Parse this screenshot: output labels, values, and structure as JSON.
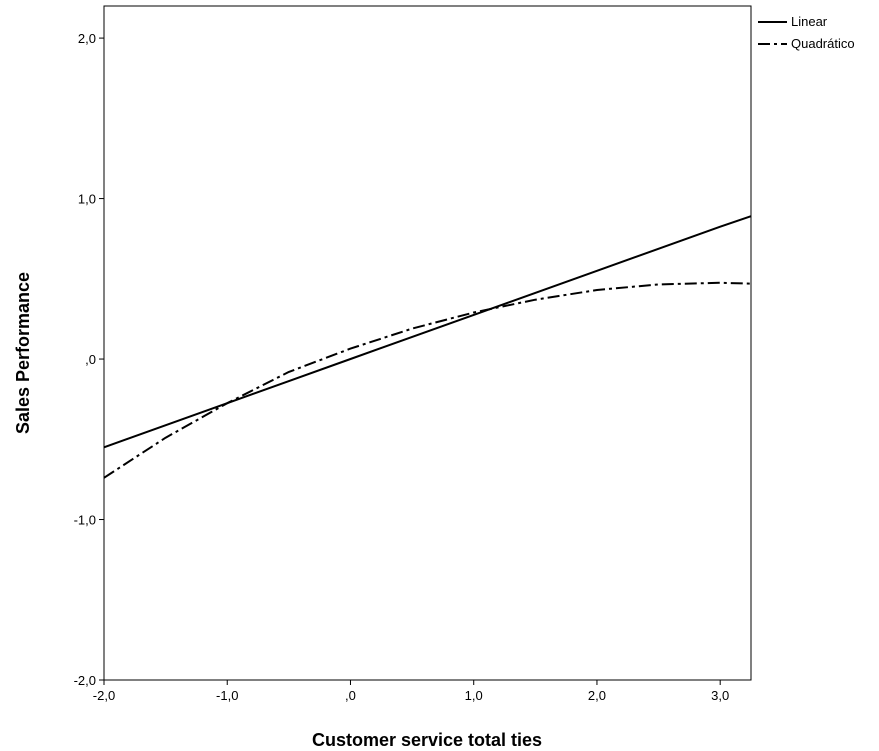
{
  "chart_data": {
    "type": "line",
    "title": "",
    "xlabel": "Customer service total ties",
    "ylabel": "Sales Performance",
    "xlim": [
      -2.0,
      3.25
    ],
    "ylim": [
      -2.0,
      2.2
    ],
    "x_ticks": [
      -2.0,
      -1.0,
      0.0,
      1.0,
      2.0,
      3.0
    ],
    "x_tick_labels": [
      "-2,0",
      "-1,0",
      ",0",
      "1,0",
      "2,0",
      "3,0"
    ],
    "y_ticks": [
      -2.0,
      -1.0,
      0.0,
      1.0,
      2.0
    ],
    "y_tick_labels": [
      "-2,0",
      "-1,0",
      ",0",
      "1,0",
      "2,0"
    ],
    "grid": false,
    "legend_position": "top-right outside",
    "series": [
      {
        "name": "Linear",
        "line_style": "solid",
        "color": "#000000",
        "x": [
          -2.0,
          -1.0,
          0.0,
          1.0,
          2.0,
          3.0,
          3.25
        ],
        "y": [
          -0.55,
          -0.275,
          0.0,
          0.275,
          0.55,
          0.825,
          0.89
        ]
      },
      {
        "name": "Quadrático",
        "line_style": "dash-dot",
        "color": "#000000",
        "x": [
          -2.0,
          -1.5,
          -1.0,
          -0.5,
          0.0,
          0.5,
          1.0,
          1.5,
          2.0,
          2.5,
          3.0,
          3.25
        ],
        "y": [
          -0.74,
          -0.49,
          -0.275,
          -0.08,
          0.065,
          0.19,
          0.29,
          0.37,
          0.43,
          0.465,
          0.475,
          0.47
        ]
      }
    ]
  }
}
